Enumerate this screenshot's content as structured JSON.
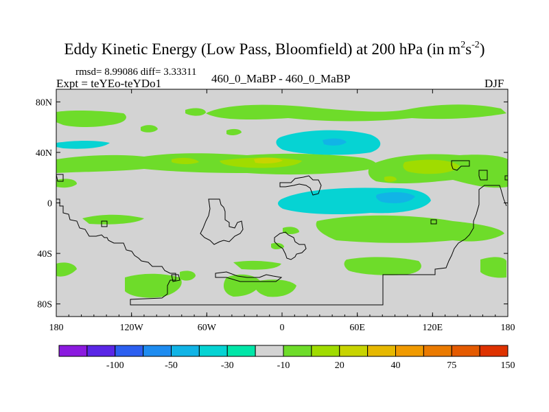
{
  "title": {
    "main": "Eddy Kinetic Energy (Low Pass, Bloomfield) at 200 hPa (in m",
    "sup1": "2",
    "mid": "s",
    "sup2": "-2",
    "close": ")"
  },
  "header": {
    "stats": "rmsd= 8.99086 diff= 3.33311",
    "experiment": "Expt = teYEo-teYDo1",
    "comparison": "460_0_MaBP - 460_0_MaBP",
    "season": "DJF"
  },
  "map": {
    "lon_ticks": [
      "180",
      "120W",
      "60W",
      "0",
      "60E",
      "120E",
      "180"
    ],
    "lat_ticks": [
      "80N",
      "40N",
      "0",
      "40S",
      "80S"
    ],
    "fill_color": "#d3d3d3",
    "coastline_color": "#000000"
  },
  "colorbar": {
    "colors": [
      "#8b1adf",
      "#5a26e6",
      "#2c5ff0",
      "#1e8cf0",
      "#11b4e6",
      "#06d3d3",
      "#00e6a8",
      "#d3d3d3",
      "#6edc2a",
      "#a0dc00",
      "#c8d400",
      "#e6b800",
      "#f09a00",
      "#ea7a00",
      "#e45a00",
      "#de3200"
    ],
    "labels": [
      "-100",
      "-50",
      "-30",
      "-10",
      "20",
      "40",
      "75",
      "150"
    ]
  }
}
